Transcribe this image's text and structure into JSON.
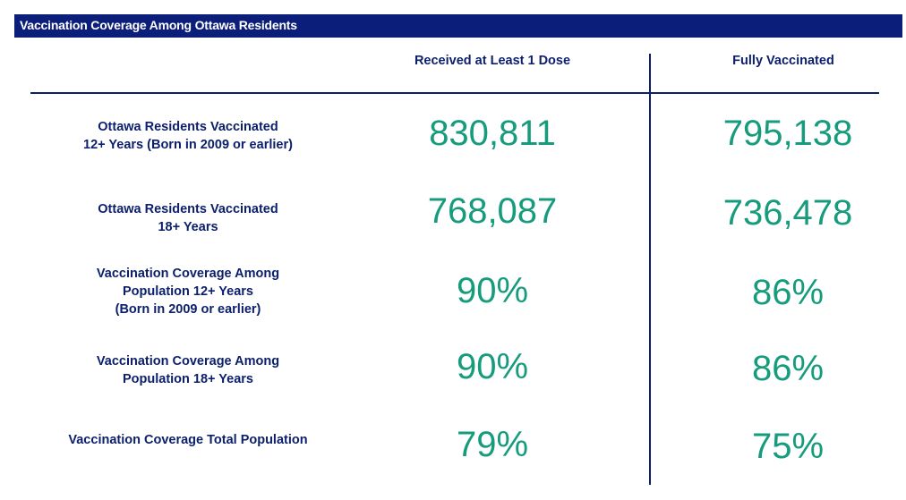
{
  "title": "Vaccination Coverage Among Ottawa Residents",
  "columns": [
    "Received at Least 1 Dose",
    "Fully Vaccinated"
  ],
  "rows": [
    {
      "label_lines": [
        "Ottawa Residents Vaccinated",
        "12+ Years (Born in 2009 or earlier)"
      ],
      "values": [
        "830,811",
        "795,138"
      ]
    },
    {
      "label_lines": [
        "Ottawa Residents Vaccinated",
        "18+ Years"
      ],
      "values": [
        "768,087",
        "736,478"
      ]
    },
    {
      "label_lines": [
        "Vaccination Coverage Among",
        "Population 12+ Years",
        "(Born in 2009 or earlier)"
      ],
      "values": [
        "90%",
        "86%"
      ]
    },
    {
      "label_lines": [
        "Vaccination Coverage Among",
        "Population 18+ Years"
      ],
      "values": [
        "90%",
        "86%"
      ]
    },
    {
      "label_lines": [
        "Vaccination Coverage Total Population"
      ],
      "values": [
        "79%",
        "75%"
      ]
    }
  ],
  "colors": {
    "title_bar": "#0b1f7a",
    "label_text": "#0b1f6a",
    "value_text": "#169c7d"
  }
}
